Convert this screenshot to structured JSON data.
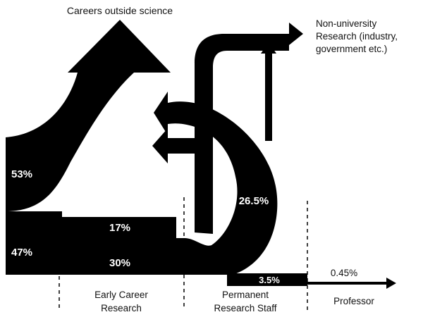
{
  "labels": {
    "careers_outside": "Careers outside science",
    "non_university": [
      "Non-university",
      "Research (industry,",
      "government etc.)"
    ],
    "pct_outside": "53%",
    "pct_stay": "47%",
    "pct_early_17": "17%",
    "pct_early_30": "30%",
    "pct_permanent": "26.5%",
    "pct_permanent_35": "3.5%",
    "pct_professor": "0.45%",
    "stage_early": [
      "Early Career",
      "Research"
    ],
    "stage_permanent": [
      "Permanent",
      "Research Staff"
    ],
    "stage_professor": "Professor"
  },
  "flows": {
    "outside": 53,
    "stay": 47,
    "early_17": 17,
    "early_30": 30,
    "permanent": 26.5,
    "permanent_to_professor": 3.5,
    "professor": 0.45
  },
  "colors": {
    "flow": "#000000",
    "background": "#ffffff",
    "label_on_flow": "#ffffff",
    "label_text": "#111111"
  }
}
